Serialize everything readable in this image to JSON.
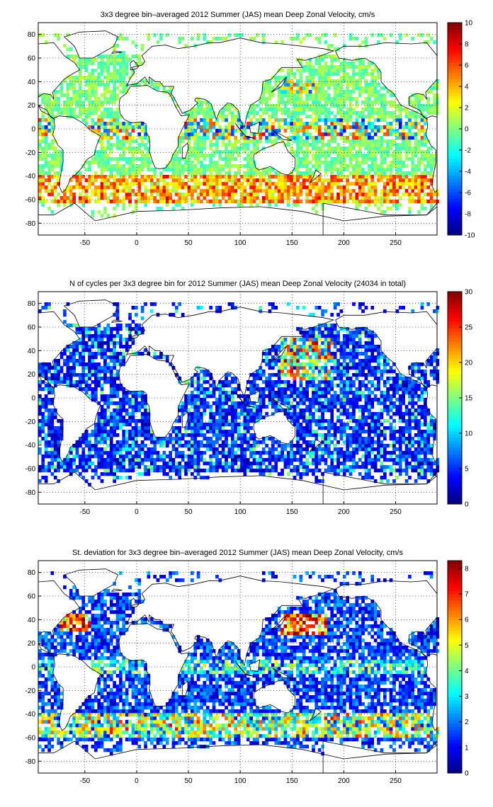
{
  "chart_data": [
    {
      "type": "heatmap",
      "title": "3x3 degree bin–averaged 2012 Summer (JAS) mean Deep Zonal Velocity, cm/s",
      "xlabel": "",
      "ylabel": "",
      "xlim": [
        -95,
        290
      ],
      "ylim": [
        -90,
        90
      ],
      "x_ticks": [
        -50,
        0,
        50,
        100,
        150,
        200,
        250
      ],
      "y_ticks": [
        80,
        60,
        40,
        20,
        0,
        -20,
        -40,
        -60,
        -80
      ],
      "colorbar": {
        "min": -10,
        "max": 10,
        "ticks": [
          10,
          8,
          6,
          4,
          2,
          0,
          -2,
          -4,
          -6,
          -8,
          -10
        ],
        "colormap": "jet"
      },
      "grid": "dotted",
      "bin_size_deg": 3,
      "summary": "Mostly small values (-2 to 2) everywhere; strong positive (eastward, 6-10) band in the Southern Ocean (ACC) near -45 to -60; mixed strong signs near the equator"
    },
    {
      "type": "heatmap",
      "title": "N of cycles per 3x3 degree bin for 2012 Summer (JAS) mean Deep Zonal Velocity (24034 in total)",
      "xlabel": "",
      "ylabel": "",
      "xlim": [
        -95,
        290
      ],
      "ylim": [
        -90,
        90
      ],
      "x_ticks": [
        -50,
        0,
        50,
        100,
        150,
        200,
        250
      ],
      "y_ticks": [
        80,
        60,
        40,
        20,
        0,
        -20,
        -40,
        -60,
        -80
      ],
      "colorbar": {
        "min": 0,
        "max": 30,
        "ticks": [
          30,
          25,
          20,
          15,
          10,
          5,
          0
        ],
        "colormap": "jet"
      },
      "grid": "dotted",
      "bin_size_deg": 3,
      "summary": "Mostly low counts (1-8); higher counts (15-30) concentrated in the NW Pacific (Kuroshio region) and scattered elsewhere"
    },
    {
      "type": "heatmap",
      "title": "St. deviation for 3x3 degree bin–averaged 2012 Summer (JAS) mean Deep Zonal Velocity, cm/s",
      "xlabel": "",
      "ylabel": "",
      "xlim": [
        -95,
        290
      ],
      "ylim": [
        -90,
        90
      ],
      "x_ticks": [
        -50,
        0,
        50,
        100,
        150,
        200,
        250
      ],
      "y_ticks": [
        80,
        60,
        40,
        20,
        0,
        -20,
        -40,
        -60,
        -80
      ],
      "colorbar": {
        "min": 0,
        "max": 8.3,
        "ticks": [
          8,
          7,
          6,
          5,
          4,
          3,
          2,
          1,
          0
        ],
        "colormap": "jet"
      },
      "grid": "dotted",
      "bin_size_deg": 3,
      "summary": "Mostly low (0-2) over open ocean; high (6-8) in the Kuroshio extension, Gulf Stream and Southern Ocean ACC band"
    }
  ]
}
